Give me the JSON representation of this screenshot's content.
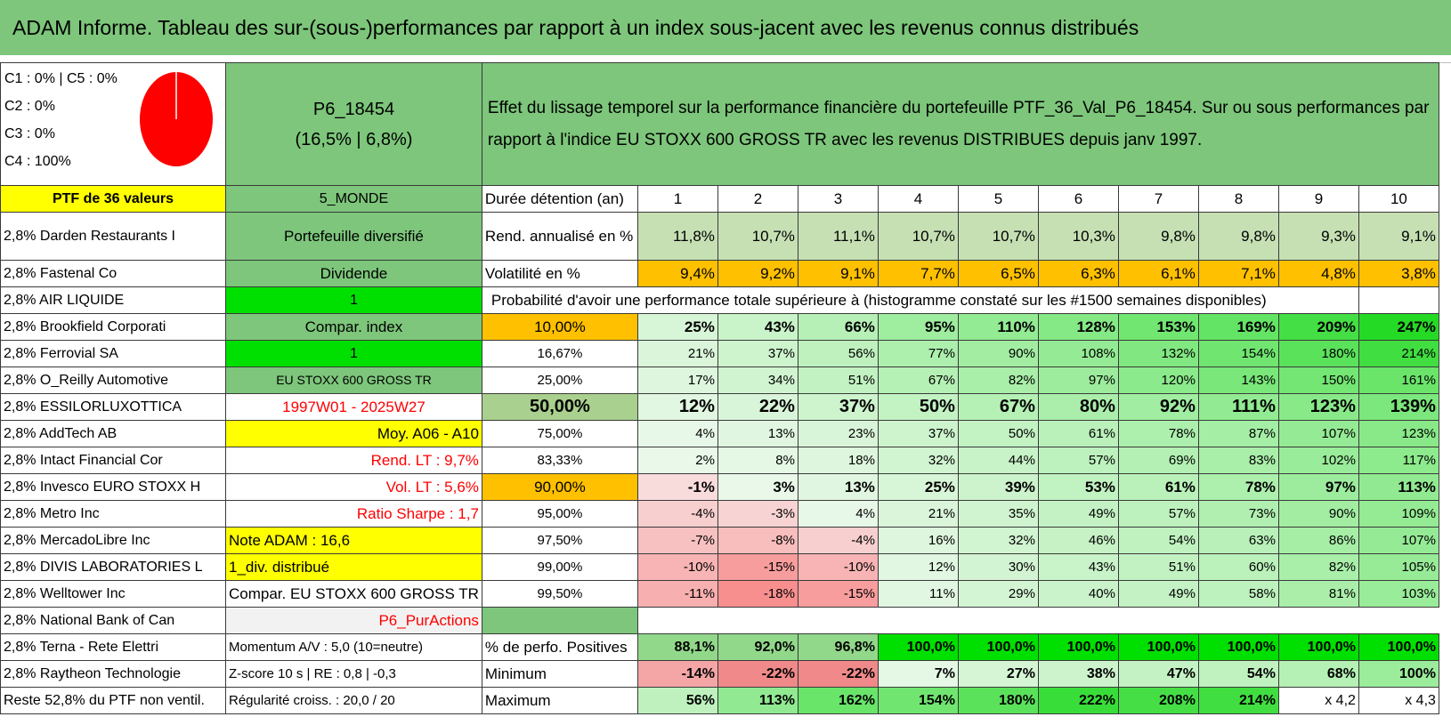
{
  "title": "ADAM Informe. Tableau des sur-(sous-)performances par rapport à un index sous-jacent avec les revenus connus distribués",
  "allocation": {
    "c1_c5": "C1 : 0% | C5 : 0%",
    "c2": "C2 : 0%",
    "c3": "C3 : 0%",
    "c4": "C4 : 100%",
    "pie_color": "#ff0000",
    "pie_share_c4": 1.0
  },
  "portfolio": {
    "code": "P6_18454",
    "perf": "(16,5% | 6,8%)",
    "size": "PTF de 36 valeurs",
    "zone": "5_MONDE",
    "type": "Portefeuille diversifié",
    "style": "Dividende",
    "flag1": "1",
    "compar_index": "Compar. index",
    "flag2": "1",
    "index_name": "EU STOXX 600 GROSS TR",
    "period": "1997W01 - 2025W27",
    "moy": "Moy. A06 - A10",
    "rend_lt": "Rend. LT : 9,7%",
    "vol_lt": "Vol. LT : 5,6%",
    "sharpe": "Ratio Sharpe : 1,7",
    "note": "Note ADAM : 16,6",
    "div": "1_div. distribué",
    "compar_label": "Compar. EU STOXX 600 GROSS TR",
    "pur": "P6_PurActions",
    "momentum": "Momentum A/V : 5,0 (10=neutre)",
    "zscore": "Z-score 10 s | RE : 0,8 | -0,3",
    "regularite": "Régularité croiss. : 20,0 / 20"
  },
  "description": "Effet du lissage temporel sur la performance financière du portefeuille PTF_36_Val_P6_18454. Sur ou sous performances par rapport à l'indice EU STOXX 600 GROSS TR avec les revenus DISTRIBUES depuis janv 1997.",
  "holdings": [
    "2,8% Darden Restaurants I",
    "2,8% Fastenal Co",
    "2,8% AIR LIQUIDE",
    "2,8% Brookfield Corporati",
    "2,8% Ferrovial SA",
    "2,8% O_Reilly Automotive",
    "2,8% ESSILORLUXOTTICA",
    "2,8% AddTech AB",
    "2,8% Intact Financial Cor",
    "2,8% Invesco EURO STOXX H",
    "2,8% Metro Inc",
    "2,8% MercadoLibre Inc",
    "2,8% DIVIS LABORATORIES L",
    "2,8% Welltower Inc",
    "2,8% National Bank of Can",
    "2,8% Terna - Rete Elettri",
    "2,8% Raytheon Technologie",
    "Reste 52,8% du PTF non ventil."
  ],
  "table": {
    "duree_label": "Durée détention (an)",
    "years": [
      "1",
      "2",
      "3",
      "4",
      "5",
      "6",
      "7",
      "8",
      "9",
      "10"
    ],
    "rend_label": "Rend. annualisé en %",
    "rend": [
      "11,8%",
      "10,7%",
      "11,1%",
      "10,7%",
      "10,7%",
      "10,3%",
      "9,8%",
      "9,8%",
      "9,3%",
      "9,1%"
    ],
    "vol_label": "Volatilité en %",
    "vol": [
      "9,4%",
      "9,2%",
      "9,1%",
      "7,7%",
      "6,5%",
      "6,3%",
      "6,1%",
      "7,1%",
      "4,8%",
      "3,8%"
    ],
    "prob_label": "Probabilité d'avoir une performance totale supérieure à (histogramme constaté sur les #1500 semaines disponibles)",
    "prob_rows": [
      {
        "pct": "10,00%",
        "vals": [
          "25%",
          "43%",
          "66%",
          "95%",
          "110%",
          "128%",
          "153%",
          "169%",
          "209%",
          "247%"
        ]
      },
      {
        "pct": "16,67%",
        "vals": [
          "21%",
          "37%",
          "56%",
          "77%",
          "90%",
          "108%",
          "132%",
          "154%",
          "180%",
          "214%"
        ]
      },
      {
        "pct": "25,00%",
        "vals": [
          "17%",
          "34%",
          "51%",
          "67%",
          "82%",
          "97%",
          "120%",
          "143%",
          "150%",
          "161%"
        ]
      },
      {
        "pct": "50,00%",
        "vals": [
          "12%",
          "22%",
          "37%",
          "50%",
          "67%",
          "80%",
          "92%",
          "111%",
          "123%",
          "139%"
        ]
      },
      {
        "pct": "75,00%",
        "vals": [
          "4%",
          "13%",
          "23%",
          "37%",
          "50%",
          "61%",
          "78%",
          "87%",
          "107%",
          "123%"
        ]
      },
      {
        "pct": "83,33%",
        "vals": [
          "2%",
          "8%",
          "18%",
          "32%",
          "44%",
          "57%",
          "69%",
          "83%",
          "102%",
          "117%"
        ]
      },
      {
        "pct": "90,00%",
        "vals": [
          "-1%",
          "3%",
          "13%",
          "25%",
          "39%",
          "53%",
          "61%",
          "78%",
          "97%",
          "113%"
        ]
      },
      {
        "pct": "95,00%",
        "vals": [
          "-4%",
          "-3%",
          "4%",
          "21%",
          "35%",
          "49%",
          "57%",
          "73%",
          "90%",
          "109%"
        ]
      },
      {
        "pct": "97,50%",
        "vals": [
          "-7%",
          "-8%",
          "-4%",
          "16%",
          "32%",
          "46%",
          "54%",
          "63%",
          "86%",
          "107%"
        ]
      },
      {
        "pct": "99,00%",
        "vals": [
          "-10%",
          "-15%",
          "-10%",
          "12%",
          "30%",
          "43%",
          "51%",
          "60%",
          "82%",
          "105%"
        ]
      },
      {
        "pct": "99,50%",
        "vals": [
          "-11%",
          "-18%",
          "-15%",
          "11%",
          "29%",
          "40%",
          "49%",
          "58%",
          "81%",
          "103%"
        ]
      }
    ],
    "pos_label": "% de perfo. Positives",
    "pos": [
      "88,1%",
      "92,0%",
      "96,8%",
      "100,0%",
      "100,0%",
      "100,0%",
      "100,0%",
      "100,0%",
      "100,0%",
      "100,0%"
    ],
    "min_label": "Minimum",
    "min": [
      "-14%",
      "-22%",
      "-22%",
      "7%",
      "27%",
      "38%",
      "47%",
      "54%",
      "68%",
      "100%"
    ],
    "max_label": "Maximum",
    "max": [
      "56%",
      "113%",
      "162%",
      "154%",
      "180%",
      "222%",
      "208%",
      "214%",
      "x 4,2",
      "x 4,3"
    ]
  }
}
